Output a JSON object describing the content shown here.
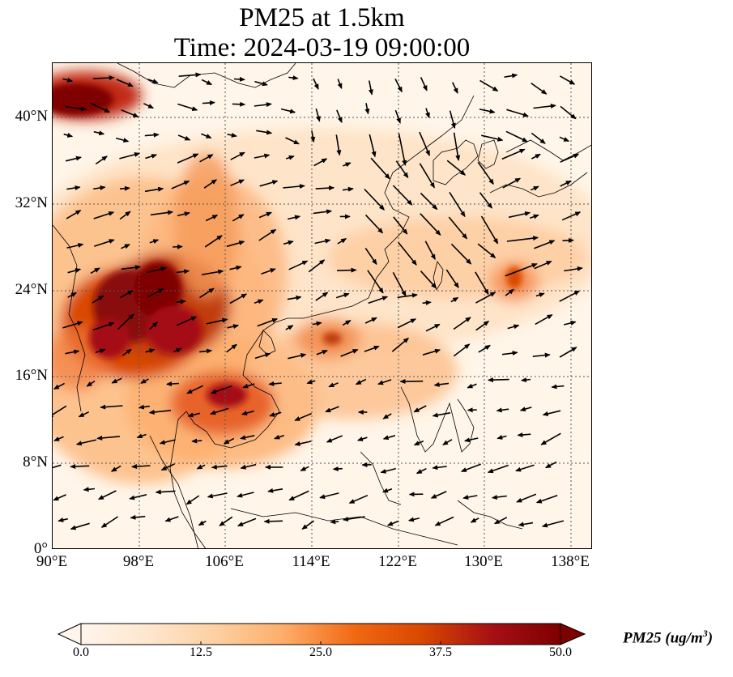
{
  "title": {
    "line1": "PM25 at 1.5km",
    "line2": "Time: 2024-03-19 09:00:00"
  },
  "map": {
    "lat_ticks": [
      "40°N",
      "32°N",
      "24°N",
      "16°N",
      "8°N",
      "0°"
    ],
    "lon_ticks": [
      "90°E",
      "98°E",
      "106°E",
      "114°E",
      "122°E",
      "130°E",
      "138°E"
    ],
    "extent": {
      "lon_min": 90,
      "lon_max": 140,
      "lat_min": 0,
      "lat_max": 45
    },
    "gridlines": true,
    "wind_vectors": true
  },
  "colorbar": {
    "title_main": "PM25 (ug/m",
    "title_exp": "3",
    "title_close": ")",
    "tick_labels": [
      "0.0",
      "12.5",
      "25.0",
      "37.5",
      "50.0"
    ],
    "min": 0,
    "max": 50,
    "colormap": [
      "#fff5eb",
      "#fee6ce",
      "#fdd0a2",
      "#fdae6b",
      "#f16913",
      "#d94801",
      "#a50f15",
      "#7f0000"
    ]
  }
}
